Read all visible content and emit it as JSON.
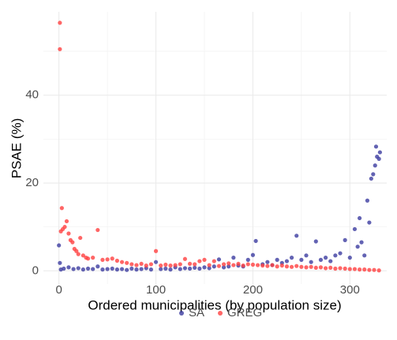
{
  "chart_data": {
    "type": "scatter",
    "x_label": "Ordered municipalities (by population size)",
    "y_label": "PSAE (%)",
    "xlim": [
      -16,
      338
    ],
    "ylim": [
      -3,
      59
    ],
    "xticks": [
      0,
      100,
      200,
      300
    ],
    "yticks": [
      0,
      20,
      40
    ],
    "xminor": [
      50,
      150,
      250
    ],
    "yminor": [
      10,
      30,
      50
    ],
    "grid": true,
    "legend": "bottom",
    "series": [
      {
        "name": "SA",
        "color": "#3c3ca0",
        "x": [
          0,
          1,
          2,
          5,
          10,
          15,
          20,
          25,
          30,
          35,
          40,
          45,
          50,
          55,
          60,
          65,
          70,
          75,
          80,
          85,
          90,
          95,
          100,
          105,
          110,
          115,
          120,
          125,
          130,
          135,
          140,
          145,
          150,
          155,
          160,
          165,
          170,
          175,
          180,
          185,
          190,
          195,
          200,
          203,
          210,
          215,
          220,
          225,
          230,
          235,
          240,
          245,
          250,
          255,
          260,
          265,
          270,
          275,
          280,
          285,
          290,
          295,
          300,
          305,
          308,
          310,
          312,
          315,
          318,
          320,
          322,
          324,
          326,
          327,
          328,
          330,
          331
        ],
        "values": [
          5.8,
          1.8,
          0.3,
          0.5,
          0.8,
          0.4,
          0.6,
          0.3,
          0.5,
          0.4,
          1.0,
          0.3,
          0.4,
          0.5,
          0.3,
          0.4,
          0.2,
          0.5,
          0.3,
          0.4,
          0.6,
          0.3,
          2.0,
          0.4,
          0.5,
          0.3,
          0.8,
          0.4,
          0.6,
          0.5,
          0.7,
          0.5,
          0.8,
          0.6,
          1.0,
          2.6,
          0.8,
          1.0,
          3.0,
          1.2,
          1.0,
          2.5,
          3.6,
          6.8,
          1.5,
          2.0,
          1.3,
          2.5,
          1.8,
          2.2,
          3.0,
          8.0,
          2.5,
          3.5,
          2.0,
          6.7,
          2.5,
          3.0,
          2.2,
          3.5,
          4.0,
          7.0,
          3.0,
          9.5,
          5.5,
          12.0,
          6.5,
          3.5,
          16.0,
          11.0,
          21.0,
          22.0,
          24.0,
          28.3,
          26.0,
          25.5,
          27.0
        ]
      },
      {
        "name": "GREG",
        "color": "#ff4040",
        "x": [
          1,
          1,
          2,
          3,
          4,
          6,
          8,
          10,
          12,
          14,
          16,
          18,
          20,
          22,
          25,
          28,
          30,
          35,
          40,
          45,
          50,
          55,
          60,
          65,
          70,
          75,
          80,
          85,
          90,
          95,
          100,
          105,
          110,
          115,
          120,
          125,
          130,
          135,
          140,
          145,
          150,
          155,
          160,
          165,
          170,
          175,
          180,
          185,
          190,
          195,
          200,
          205,
          210,
          215,
          220,
          225,
          230,
          235,
          240,
          245,
          250,
          255,
          260,
          265,
          270,
          275,
          280,
          285,
          290,
          295,
          300,
          305,
          310,
          315,
          320,
          325,
          330
        ],
        "values": [
          56.5,
          50.5,
          9,
          14.3,
          9.5,
          10,
          11.3,
          8.5,
          7,
          6.5,
          5,
          4.5,
          3.8,
          7.5,
          3.5,
          3,
          2.8,
          3,
          9.3,
          2.5,
          2.6,
          2.8,
          2.3,
          2,
          1.8,
          1.5,
          1.3,
          1.6,
          1.2,
          1.5,
          4.5,
          1.2,
          1.4,
          1.2,
          1.3,
          1.5,
          2.7,
          1.6,
          1.5,
          2.2,
          2.5,
          1.3,
          2.2,
          1.1,
          1.5,
          1.7,
          1.3,
          1.6,
          1.2,
          1.5,
          1.4,
          1.3,
          1.2,
          1.1,
          1.3,
          1.0,
          1.2,
          1.0,
          0.9,
          1.1,
          0.9,
          0.8,
          0.9,
          0.7,
          0.8,
          0.6,
          0.7,
          0.5,
          0.6,
          0.5,
          0.4,
          0.4,
          0.3,
          0.3,
          0.2,
          0.2,
          0.1
        ]
      }
    ]
  }
}
